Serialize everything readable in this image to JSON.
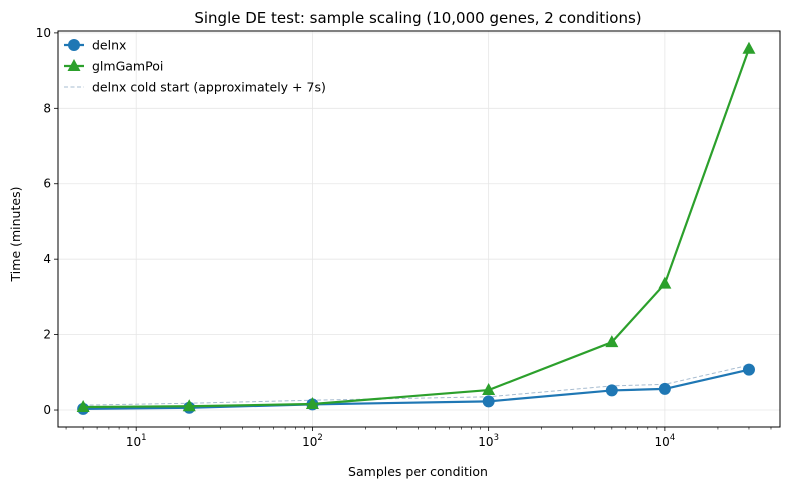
{
  "chart_data": {
    "type": "line",
    "title": "Single DE test: sample scaling (10,000 genes, 2 conditions)",
    "xlabel": "Samples per condition",
    "ylabel": "Time (minutes)",
    "xscale": "log",
    "xlim": [
      3.6,
      45000
    ],
    "ylim": [
      -0.45,
      10.05
    ],
    "x": [
      5,
      20,
      100,
      1000,
      5000,
      10000,
      30000
    ],
    "x_ticks": [
      {
        "value": 10,
        "base": "10",
        "exp": "1"
      },
      {
        "value": 100,
        "base": "10",
        "exp": "2"
      },
      {
        "value": 1000,
        "base": "10",
        "exp": "3"
      },
      {
        "value": 10000,
        "base": "10",
        "exp": "4"
      }
    ],
    "y_ticks": [
      {
        "value": 0,
        "label": "0"
      },
      {
        "value": 2,
        "label": "2"
      },
      {
        "value": 4,
        "label": "4"
      },
      {
        "value": 6,
        "label": "6"
      },
      {
        "value": 8,
        "label": "8"
      },
      {
        "value": 10,
        "label": "10"
      }
    ],
    "grid": true,
    "legend_position": "top-left",
    "series": [
      {
        "name": "delnx",
        "color": "#1f77b4",
        "marker": "circle",
        "style": "solid",
        "values": [
          0.03,
          0.06,
          0.15,
          0.23,
          0.52,
          0.56,
          1.07
        ]
      },
      {
        "name": "glmGamPoi",
        "color": "#2ca02c",
        "marker": "triangle",
        "style": "solid",
        "values": [
          0.08,
          0.1,
          0.16,
          0.53,
          1.8,
          3.35,
          9.58
        ]
      },
      {
        "name": "delnx cold start (approximately + 7s)",
        "color": "#a7bcd0",
        "marker": "none",
        "style": "dashed",
        "values": [
          0.13,
          0.18,
          0.26,
          0.35,
          0.64,
          0.68,
          1.19
        ]
      }
    ]
  }
}
